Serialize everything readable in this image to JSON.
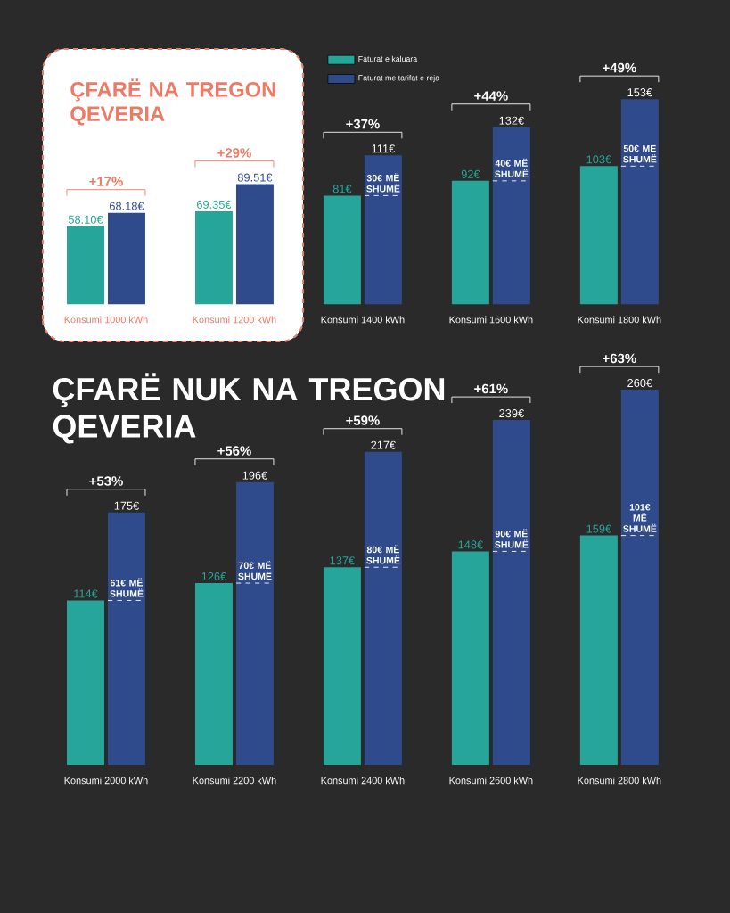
{
  "chart_data": [
    {
      "type": "bar",
      "title": "ÇFARË NA TREGON QEVERIA",
      "categories": [
        "Konsumi 1000 kWh",
        "Konsumi 1200 kWh",
        "Konsumi 1400 kWh",
        "Konsumi 1600 kWh",
        "Konsumi 1800 kWh"
      ],
      "series": [
        {
          "name": "Faturat e kaluara",
          "color": "#26a69a",
          "values": [
            58.1,
            69.35,
            81,
            92,
            103
          ],
          "value_labels": [
            "58.10€",
            "69.35€",
            "81€",
            "92€",
            "103€"
          ]
        },
        {
          "name": "Faturat me tarifat e reja",
          "color": "#2f4b8c",
          "values": [
            68.18,
            89.51,
            111,
            132,
            153
          ],
          "value_labels": [
            "68.18€",
            "89.51€",
            "111€",
            "132€",
            "153€"
          ]
        }
      ],
      "legend": "top",
      "annotations": [
        {
          "text": "+17%",
          "x": "Konsumi 1000 kWh",
          "y": 68.18
        },
        {
          "text": "+29%",
          "x": "Konsumi 1200 kWh",
          "y": 89.51
        },
        {
          "text": "+37%",
          "x": "Konsumi 1400 kWh",
          "y": 111
        },
        {
          "text": "+44%",
          "x": "Konsumi 1600 kWh",
          "y": 132
        },
        {
          "text": "+49%",
          "x": "Konsumi 1800 kWh",
          "y": 153
        },
        {
          "text": "30€ MË SHUMË",
          "x": "Konsumi 1400 kWh",
          "y": 81
        },
        {
          "text": "40€ MË SHUMË",
          "x": "Konsumi 1600 kWh",
          "y": 92
        },
        {
          "text": "50€ MË SHUMË",
          "x": "Konsumi 1800 kWh",
          "y": 103
        }
      ]
    },
    {
      "type": "bar",
      "title": "ÇFARË NUK NA TREGON QEVERIA",
      "categories": [
        "Konsumi 2000 kWh",
        "Konsumi 2200 kWh",
        "Konsumi 2400 kWh",
        "Konsumi 2600 kWh",
        "Konsumi 2800 kWh"
      ],
      "series": [
        {
          "color": "#26a69a",
          "values": [
            114,
            126,
            137,
            148,
            159
          ],
          "value_labels": [
            "114€",
            "126€",
            "137€",
            "148€",
            "159€"
          ]
        },
        {
          "color": "#2f4b8c",
          "values": [
            175,
            196,
            217,
            239,
            260
          ],
          "value_labels": [
            "175€",
            "196€",
            "217€",
            "239€",
            "260€"
          ]
        }
      ],
      "annotations": [
        {
          "text": "+53%",
          "x": "Konsumi 2000 kWh",
          "y": 175
        },
        {
          "text": "+56%",
          "x": "Konsumi 2200 kWh",
          "y": 196
        },
        {
          "text": "+59%",
          "x": "Konsumi 2400 kWh",
          "y": 217
        },
        {
          "text": "+61%",
          "x": "Konsumi 2600 kWh",
          "y": 239
        },
        {
          "text": "+63%",
          "x": "Konsumi 2800 kWh",
          "y": 260
        },
        {
          "text": "61€ MË SHUMË",
          "x": "Konsumi 2000 kWh",
          "y": 114
        },
        {
          "text": "70€ MË SHUMË",
          "x": "Konsumi 2200 kWh",
          "y": 126
        },
        {
          "text": "80€ MË SHUMË",
          "x": "Konsumi 2400 kWh",
          "y": 137
        },
        {
          "text": "90€ MË SHUMË",
          "x": "Konsumi 2600 kWh",
          "y": 148
        },
        {
          "text": "101€ MË SHUMË",
          "x": "Konsumi 2800 kWh",
          "y": 159
        }
      ]
    }
  ]
}
